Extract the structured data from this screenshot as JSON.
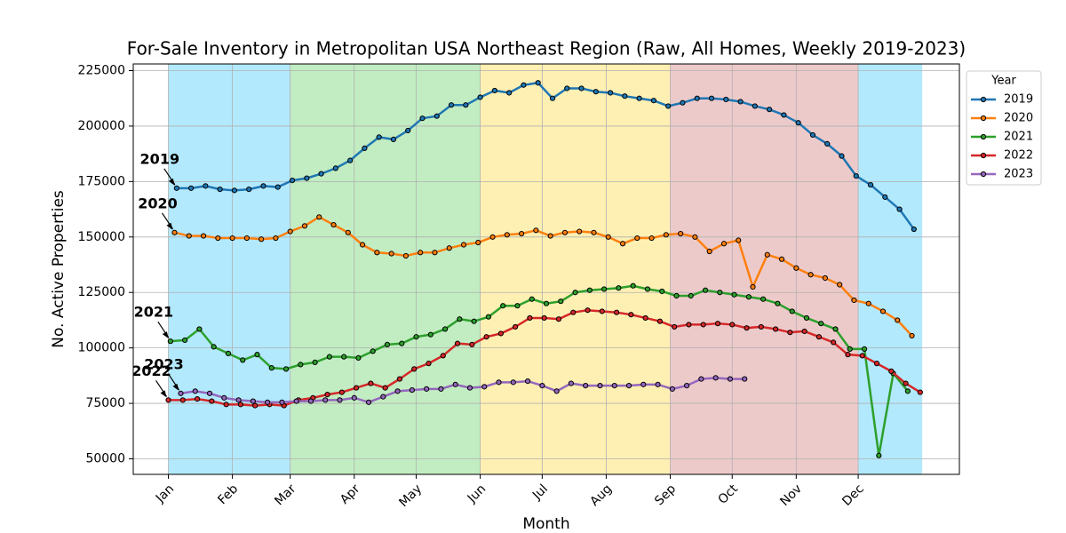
{
  "chart_data": {
    "type": "line",
    "title": "For-Sale Inventory in Metropolitan USA Northeast Region (Raw, All Homes, Weekly 2019-2023)",
    "x_label": "Month",
    "y_label": "No. Active Properties",
    "legend_title": "Year",
    "legend": "upper right outside",
    "grid": true,
    "xlim": [
      -16,
      384
    ],
    "ylim": [
      43000,
      228000
    ],
    "xticks": [
      {
        "value": 1,
        "label": "Jan"
      },
      {
        "value": 32,
        "label": "Feb"
      },
      {
        "value": 60,
        "label": "Mar"
      },
      {
        "value": 91,
        "label": "Apr"
      },
      {
        "value": 121,
        "label": "May"
      },
      {
        "value": 152,
        "label": "Jun"
      },
      {
        "value": 182,
        "label": "Jul"
      },
      {
        "value": 213,
        "label": "Aug"
      },
      {
        "value": 244,
        "label": "Sep"
      },
      {
        "value": 274,
        "label": "Oct"
      },
      {
        "value": 305,
        "label": "Nov"
      },
      {
        "value": 335,
        "label": "Dec"
      }
    ],
    "yticks": [
      50000,
      75000,
      100000,
      125000,
      150000,
      175000,
      200000,
      225000
    ],
    "bands": [
      {
        "start": 1,
        "end": 60,
        "color": "#b3e9fd"
      },
      {
        "start": 60,
        "end": 152,
        "color": "#c2edc2"
      },
      {
        "start": 152,
        "end": 244,
        "color": "#fef0b3"
      },
      {
        "start": 244,
        "end": 335,
        "color": "#edcaca"
      },
      {
        "start": 335,
        "end": 366,
        "color": "#b3e9fd"
      }
    ],
    "series": [
      {
        "name": "2019",
        "color": "#1f77b4",
        "x": [
          5,
          12,
          19,
          26,
          33,
          40,
          47,
          54,
          61,
          68,
          75,
          82,
          89,
          96,
          103,
          110,
          117,
          124,
          131,
          138,
          145,
          152,
          159,
          166,
          173,
          180,
          187,
          194,
          201,
          208,
          215,
          222,
          229,
          236,
          243,
          250,
          257,
          264,
          271,
          278,
          285,
          292,
          299,
          306,
          313,
          320,
          327,
          334,
          341,
          348,
          355,
          362
        ],
        "values": [
          172000,
          172000,
          173000,
          171500,
          171000,
          171500,
          173000,
          172500,
          175500,
          176500,
          178500,
          181000,
          184500,
          190000,
          195000,
          194000,
          198000,
          203500,
          204500,
          209500,
          209500,
          213000,
          216000,
          215000,
          218500,
          219500,
          212500,
          217000,
          217000,
          215500,
          215000,
          213500,
          212500,
          211500,
          209000,
          210500,
          212500,
          212500,
          212000,
          211000,
          209000,
          207500,
          205000,
          201500,
          196000,
          192000,
          186500,
          177500,
          173500,
          168000,
          162500,
          153500
        ]
      },
      {
        "name": "2020",
        "color": "#ff7f0e",
        "x": [
          4,
          11,
          18,
          25,
          32,
          39,
          46,
          53,
          60,
          67,
          74,
          81,
          88,
          95,
          102,
          109,
          116,
          123,
          130,
          137,
          144,
          151,
          158,
          165,
          172,
          179,
          186,
          193,
          200,
          207,
          214,
          221,
          228,
          235,
          242,
          249,
          256,
          263,
          270,
          277,
          284,
          291,
          298,
          305,
          312,
          319,
          326,
          333,
          340,
          347,
          354,
          361
        ],
        "values": [
          152000,
          150500,
          150500,
          149500,
          149500,
          149500,
          149000,
          149500,
          152500,
          155000,
          159000,
          155500,
          152000,
          146500,
          143000,
          142500,
          141500,
          143000,
          143000,
          145000,
          146500,
          147500,
          150000,
          151000,
          151500,
          153000,
          150500,
          152000,
          152500,
          152000,
          150000,
          147000,
          149500,
          149500,
          151000,
          151500,
          150000,
          143500,
          147000,
          148500,
          127500,
          142000,
          140000,
          136000,
          133000,
          131500,
          128500,
          121500,
          120000,
          116500,
          112500,
          105500
        ]
      },
      {
        "name": "2021",
        "color": "#2ca02c",
        "x": [
          2,
          9,
          16,
          23,
          30,
          37,
          44,
          51,
          58,
          65,
          72,
          79,
          86,
          93,
          100,
          107,
          114,
          121,
          128,
          135,
          142,
          149,
          156,
          163,
          170,
          177,
          184,
          191,
          198,
          205,
          212,
          219,
          226,
          233,
          240,
          247,
          254,
          261,
          268,
          275,
          282,
          289,
          296,
          303,
          310,
          317,
          324,
          331,
          338,
          345,
          352,
          359
        ],
        "values": [
          103000,
          103500,
          108500,
          100500,
          97500,
          94500,
          97000,
          91000,
          90500,
          92500,
          93500,
          96000,
          96000,
          95500,
          98500,
          101500,
          102000,
          105000,
          106000,
          108500,
          113000,
          112000,
          114000,
          119000,
          119000,
          122000,
          120000,
          121000,
          125000,
          126000,
          126500,
          127000,
          128000,
          126500,
          125500,
          123500,
          123500,
          126000,
          125000,
          124000,
          123000,
          122000,
          120000,
          116500,
          113500,
          111000,
          108500,
          99500,
          99500,
          51500,
          88500,
          80500
        ]
      },
      {
        "name": "2022",
        "color": "#d62728",
        "x": [
          1,
          8,
          15,
          22,
          29,
          36,
          43,
          50,
          57,
          64,
          71,
          78,
          85,
          92,
          99,
          106,
          113,
          120,
          127,
          134,
          141,
          148,
          155,
          162,
          169,
          176,
          183,
          190,
          197,
          204,
          211,
          218,
          225,
          232,
          239,
          246,
          253,
          260,
          267,
          274,
          281,
          288,
          295,
          302,
          309,
          316,
          323,
          330,
          337,
          344,
          351,
          358,
          365
        ],
        "values": [
          76500,
          76500,
          77000,
          76000,
          74500,
          74500,
          74000,
          74500,
          74000,
          76500,
          77500,
          79000,
          80000,
          82000,
          84000,
          82000,
          86000,
          90500,
          93000,
          96500,
          102000,
          101500,
          105000,
          106500,
          109500,
          113500,
          113500,
          113000,
          116000,
          117000,
          116500,
          116000,
          115000,
          113500,
          112000,
          109500,
          110500,
          110500,
          111000,
          110500,
          109000,
          109500,
          108500,
          107000,
          107500,
          105000,
          102500,
          97000,
          96500,
          93000,
          89500,
          84000,
          80000
        ]
      },
      {
        "name": "2023",
        "color": "#9467bd",
        "x": [
          7,
          14,
          21,
          28,
          35,
          42,
          49,
          56,
          63,
          70,
          77,
          84,
          91,
          98,
          105,
          112,
          119,
          126,
          133,
          140,
          147,
          154,
          161,
          168,
          175,
          182,
          189,
          196,
          203,
          210,
          217,
          224,
          231,
          238,
          245,
          252,
          259,
          266,
          273,
          280
        ],
        "values": [
          79500,
          80500,
          79500,
          77500,
          76500,
          76000,
          75500,
          75500,
          76000,
          76000,
          76500,
          76500,
          77500,
          75500,
          78000,
          80500,
          81000,
          81500,
          81500,
          83500,
          82000,
          82500,
          84500,
          84500,
          85000,
          83000,
          80500,
          84000,
          83000,
          83000,
          83000,
          83000,
          83500,
          83500,
          81500,
          83000,
          86000,
          86500,
          86000,
          86000
        ]
      }
    ]
  }
}
